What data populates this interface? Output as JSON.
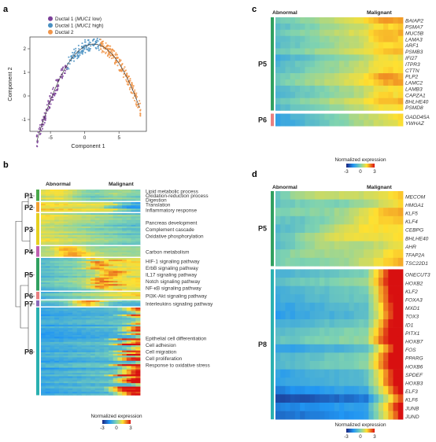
{
  "panels": [
    {
      "id": "a",
      "label": "a"
    },
    {
      "id": "b",
      "label": "b"
    },
    {
      "id": "c",
      "label": "c"
    },
    {
      "id": "d",
      "label": "d"
    }
  ],
  "panel_a": {
    "legend": [
      {
        "prefix": "Ductal 1 (",
        "gene": "MUC1",
        "suffix": " low)",
        "color": "#7b3f98"
      },
      {
        "prefix": "Ductal 1 (",
        "gene": "MUC1",
        "suffix": " high)",
        "color": "#4a90c2"
      },
      {
        "prefix": "Ductal 2",
        "gene": "",
        "suffix": "",
        "color": "#f0954a"
      }
    ],
    "xlabel": "Component 1",
    "ylabel": "Component 2",
    "xticks": [
      "-5",
      "0",
      "5"
    ],
    "yticks": [
      "2",
      "1",
      "0",
      "-1"
    ]
  },
  "panel_b": {
    "left_header": "Abnormal",
    "right_header": "Malignant",
    "groups": [
      {
        "name": "P1",
        "color": "#4aa84a",
        "terms": [
          "Lipid metabolic process",
          "Oxidation-reduction process",
          "Digestion"
        ]
      },
      {
        "name": "P2",
        "color": "#f0a030",
        "terms": [
          "Translation",
          "Inflammatory response"
        ]
      },
      {
        "name": "P3",
        "color": "#e6d020",
        "terms": [
          "Pancreas development",
          "Complement cascade",
          "Oxidative phosphorylation"
        ]
      },
      {
        "name": "P4",
        "color": "#c060b0",
        "terms": [
          "Carbon metabolism"
        ]
      },
      {
        "name": "P5",
        "color": "#30a060",
        "terms": [
          "HIF-1 signaling pathway",
          "ErbB signaling pathway",
          "IL17 signaling pathway",
          "Notch signaling pathway",
          "NF-κB signaling pathway"
        ]
      },
      {
        "name": "P6",
        "color": "#e88080",
        "terms": [
          "PI3K-Akt signaling pathway"
        ]
      },
      {
        "name": "P7",
        "color": "#8a6ab8",
        "terms": [
          "Interleukins signaling pathway"
        ]
      },
      {
        "name": "P8",
        "color": "#2ab0b0",
        "terms": [
          "Epithelial cell differentiation",
          "Cell adhesion",
          "Cell migration",
          "Cell proliferation",
          "Response to oxidative stress"
        ]
      }
    ],
    "legend_title": "Normalized expression",
    "legend_ticks": [
      "-3",
      "0",
      "3"
    ]
  },
  "panel_c": {
    "left_header": "Abnormal",
    "right_header": "Malignant",
    "groups": [
      {
        "name": "P5",
        "color": "#30a060",
        "genes": [
          "BAIAP2",
          "PSMA7",
          "MUC5B",
          "LAMA3",
          "ARF1",
          "PSMB3",
          "IFI27",
          "ITPR3",
          "CTTN",
          "PLP2",
          "LAMC2",
          "LAMB3",
          "CAPZA1",
          "BHLHE40",
          "PSMD8"
        ]
      },
      {
        "name": "P6",
        "color": "#e88080",
        "genes": [
          "GADD45A",
          "YWHAZ"
        ]
      }
    ],
    "legend_title": "Normalized expression",
    "legend_ticks": [
      "-3",
      "0",
      "3"
    ]
  },
  "panel_d": {
    "left_header": "Abnormal",
    "right_header": "Malignant",
    "groups": [
      {
        "name": "P5",
        "color": "#30a060",
        "genes": [
          "MECOM",
          "HMGA1",
          "KLF5",
          "KLF4",
          "CEBPG",
          "BHLHE40",
          "AHR",
          "TFAP2A",
          "TSC22D1"
        ]
      },
      {
        "name": "P8",
        "color": "#2ab0b0",
        "genes": [
          "ONECUT3",
          "HOXB2",
          "KLF2",
          "FOXA3",
          "MXD1",
          "TOX3",
          "ID1",
          "PITX1",
          "HOXB7",
          "FOS",
          "PPARG",
          "HOXB6",
          "SPDEF",
          "HOXB3",
          "ELF3",
          "KLF6",
          "JUNB",
          "JUND"
        ]
      }
    ],
    "legend_title": "Normalized expression",
    "legend_ticks": [
      "-3",
      "0",
      "3"
    ]
  }
}
